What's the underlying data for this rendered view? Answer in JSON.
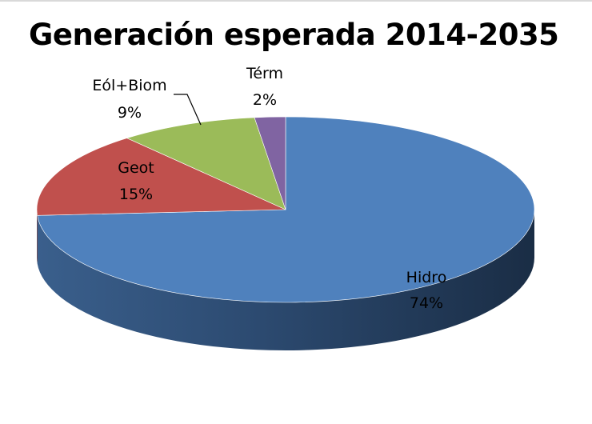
{
  "slide": {
    "title": "Generación esperada 2014-2035"
  },
  "chart_data": {
    "type": "pie",
    "title": "Generación esperada 2014-2035",
    "style": "3d",
    "slices": [
      {
        "label": "Hidro",
        "value": 74,
        "value_label": "74%",
        "color": "#4F81BD"
      },
      {
        "label": "Geot",
        "value": 15,
        "value_label": "15%",
        "color": "#C0504D"
      },
      {
        "label": "Eól+Biom",
        "value": 9,
        "value_label": "9%",
        "color": "#9BBB59"
      },
      {
        "label": "Térm",
        "value": 2,
        "value_label": "2%",
        "color": "#8064A2"
      }
    ],
    "legend": "none",
    "data_labels": "category and percentage"
  }
}
